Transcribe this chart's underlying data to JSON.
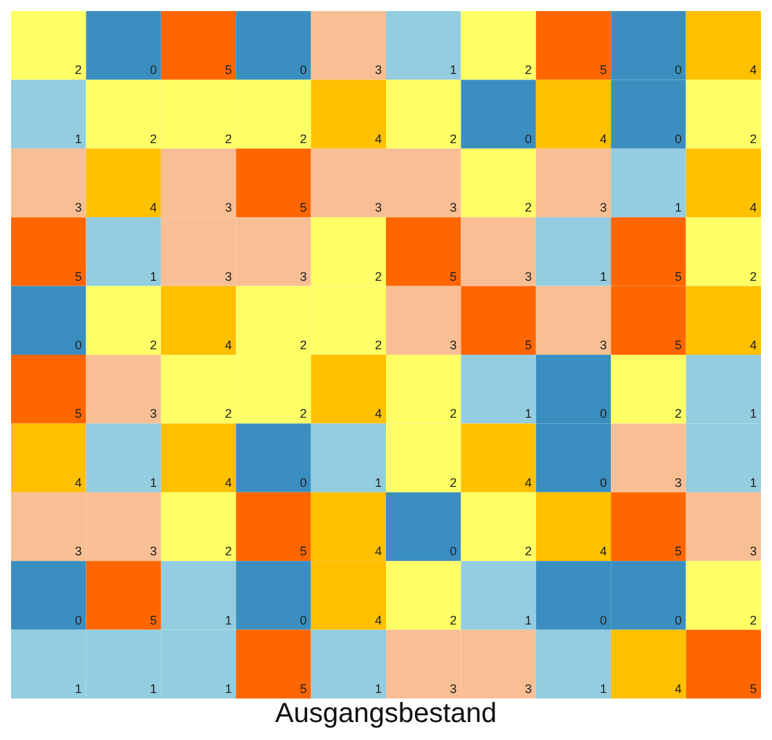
{
  "chart_data": {
    "type": "heatmap",
    "title": "Ausgangsbestand",
    "data_labels": true,
    "categories": [
      null,
      null,
      null,
      null,
      null,
      null,
      null,
      null,
      null,
      null
    ],
    "y_categories": [
      null,
      null,
      null,
      null,
      null,
      null,
      null,
      null,
      null,
      null
    ],
    "colors": [
      "#3a8fc0",
      "#93cddf",
      "#ffff66",
      "#f8bf94",
      "#ffc000",
      "#ff6600"
    ],
    "cells": [
      [
        2,
        0,
        5,
        0,
        3,
        1,
        2,
        5,
        0,
        4
      ],
      [
        1,
        2,
        2,
        2,
        4,
        2,
        0,
        4,
        0,
        2
      ],
      [
        3,
        4,
        3,
        5,
        3,
        3,
        2,
        3,
        1,
        4
      ],
      [
        5,
        1,
        3,
        3,
        2,
        5,
        3,
        1,
        5,
        2
      ],
      [
        0,
        2,
        4,
        2,
        2,
        3,
        5,
        3,
        5,
        4
      ],
      [
        5,
        3,
        2,
        2,
        4,
        2,
        1,
        0,
        2,
        1
      ],
      [
        4,
        1,
        4,
        0,
        1,
        2,
        4,
        0,
        3,
        1
      ],
      [
        3,
        3,
        2,
        5,
        4,
        0,
        2,
        4,
        5,
        3
      ],
      [
        0,
        5,
        1,
        0,
        4,
        2,
        1,
        0,
        0,
        2
      ],
      [
        1,
        1,
        1,
        5,
        1,
        3,
        3,
        1,
        4,
        5
      ]
    ]
  }
}
